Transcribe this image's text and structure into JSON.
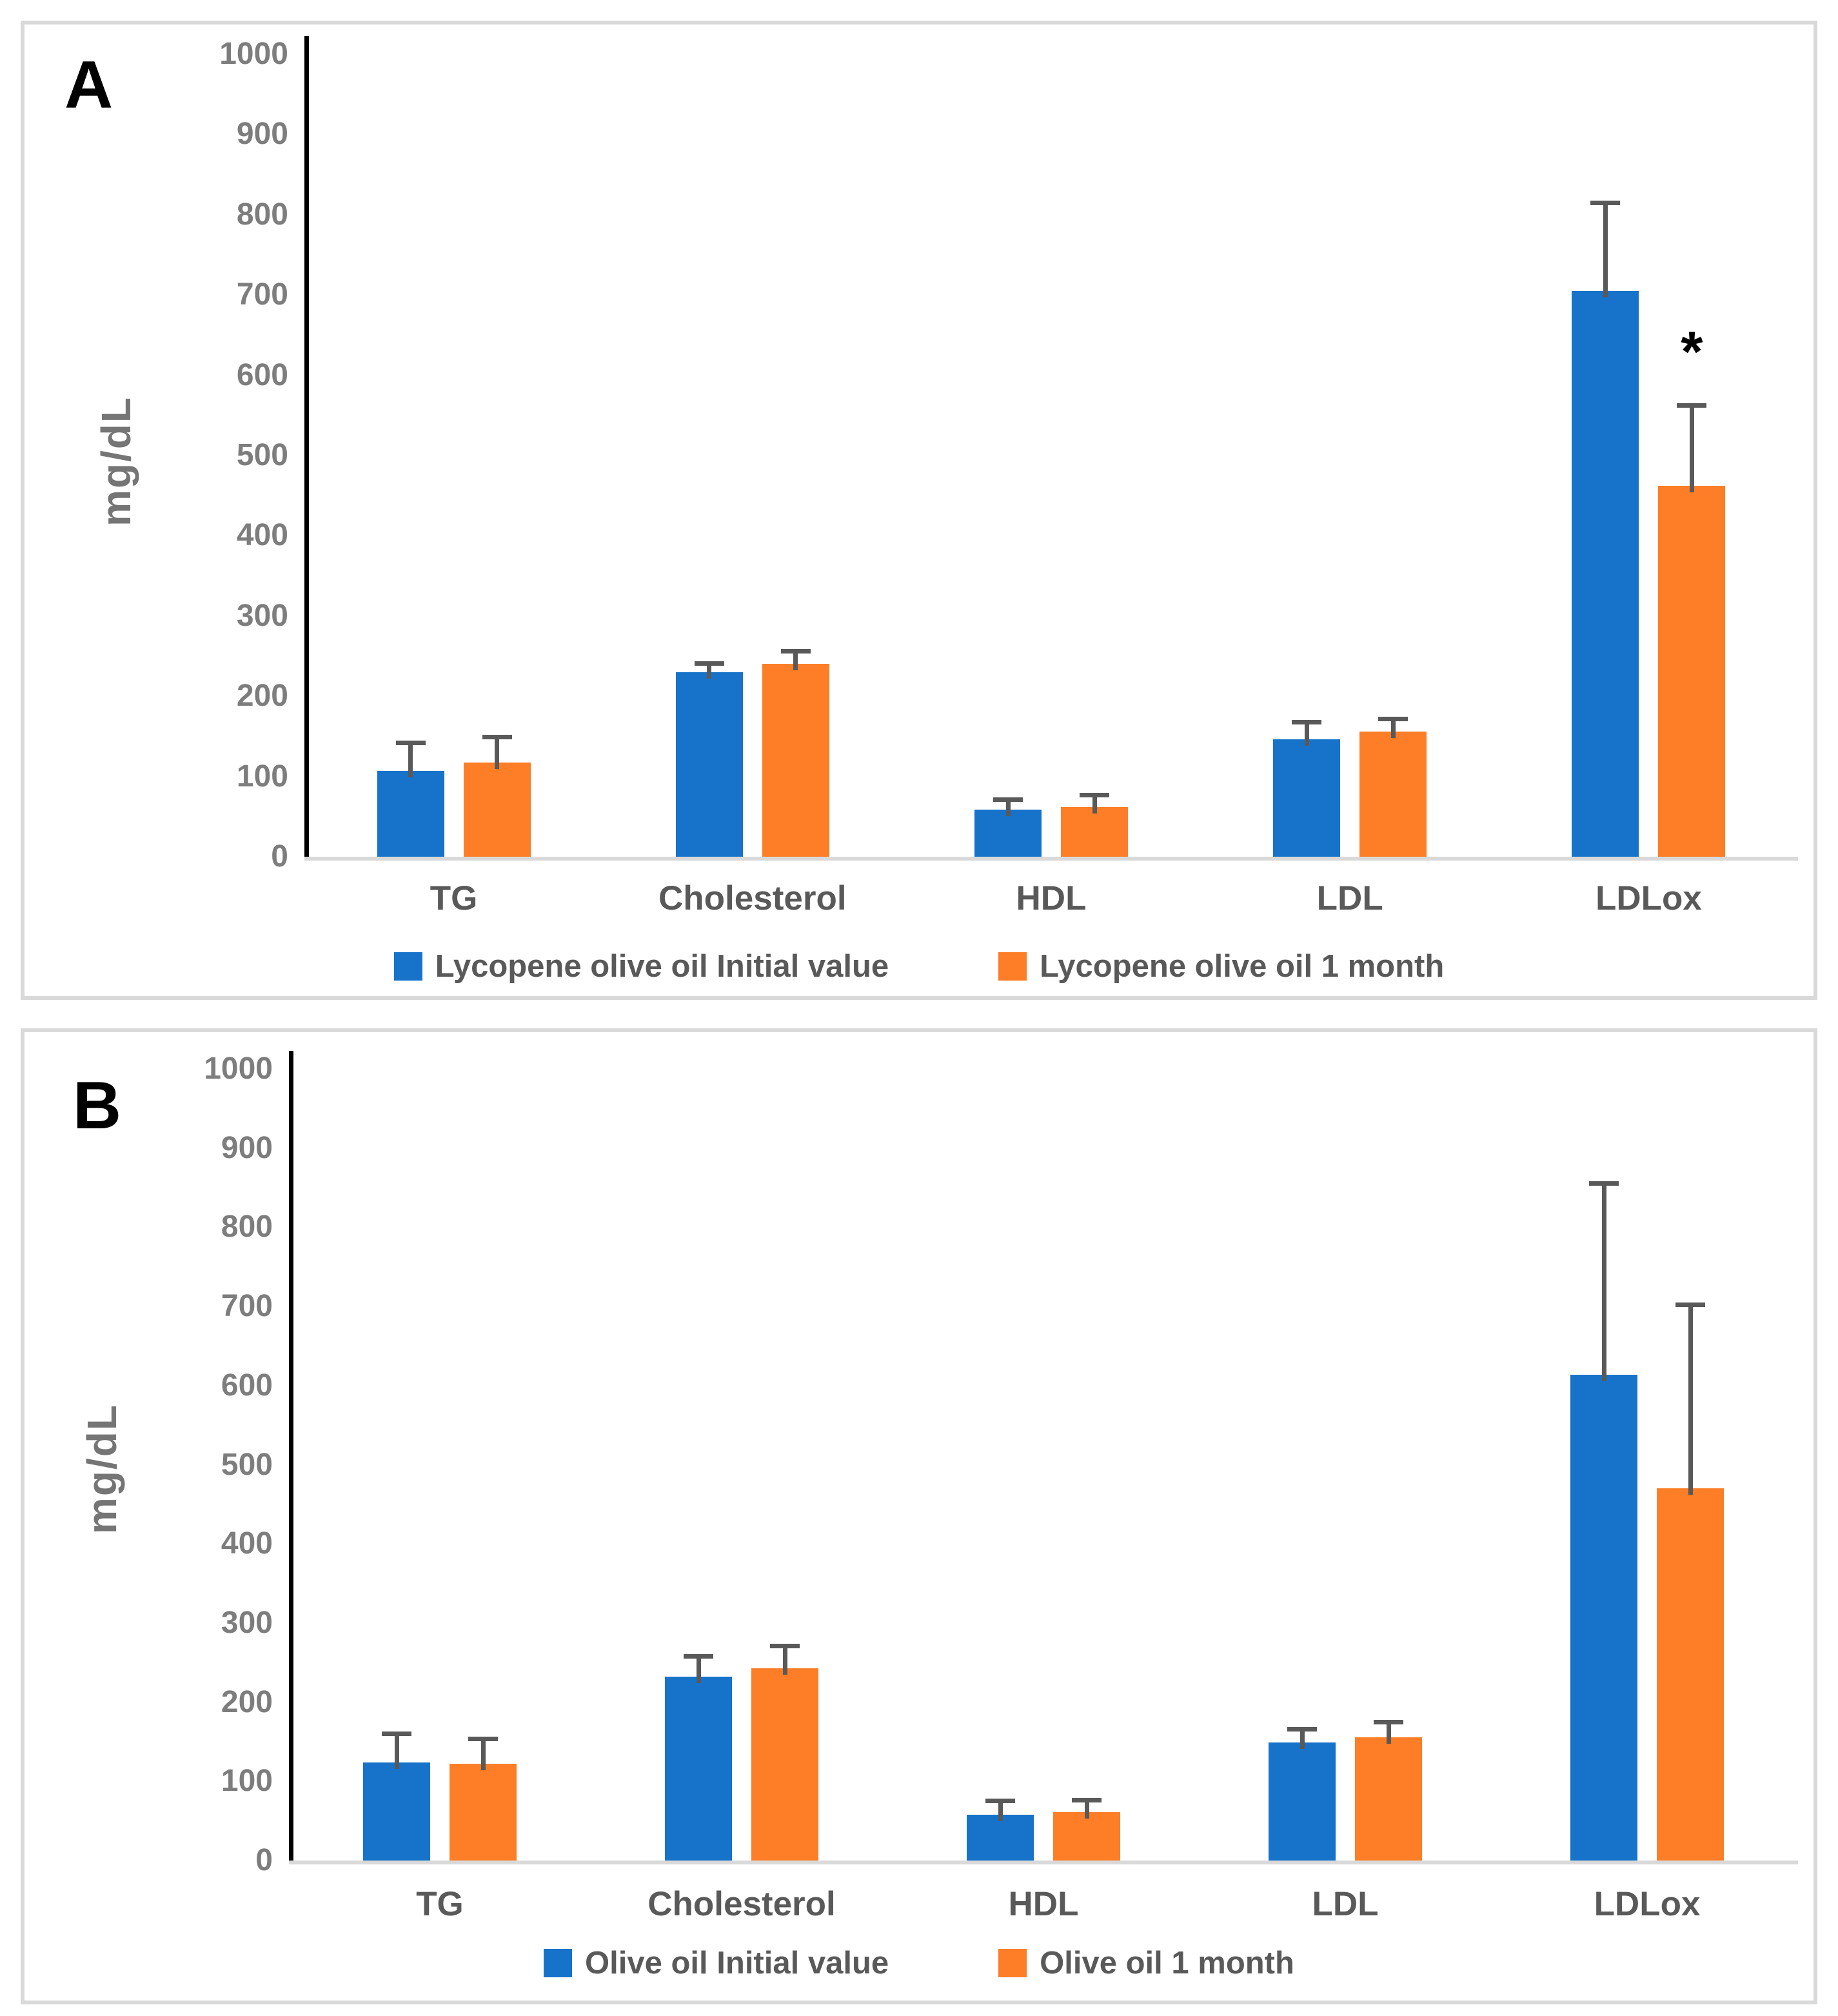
{
  "chart_data": [
    {
      "panel_label": "A",
      "type": "bar",
      "ylabel": "mg/dL",
      "ylim": [
        0,
        1000
      ],
      "ytick_step": 100,
      "ytick_labels": [
        "0",
        "100",
        "200",
        "300",
        "400",
        "500",
        "600",
        "700",
        "800",
        "900",
        "1000"
      ],
      "grid": false,
      "legend_position": "bottom",
      "categories": [
        "TG",
        "Cholesterol",
        "HDL",
        "LDL",
        "LDLox"
      ],
      "series": [
        {
          "name": "Lycopene olive oil Initial value",
          "color": "#1673c9",
          "values": [
            107,
            230,
            59,
            146,
            705
          ],
          "errors": [
            35,
            11,
            12,
            22,
            110
          ]
        },
        {
          "name": "Lycopene olive oil 1 month",
          "color": "#fd7e27",
          "values": [
            117,
            240,
            62,
            156,
            462
          ],
          "errors": [
            32,
            16,
            15,
            16,
            100
          ]
        }
      ],
      "annotations": [
        {
          "category_index": 4,
          "series_index": 1,
          "text": "*"
        }
      ]
    },
    {
      "panel_label": "B",
      "type": "bar",
      "ylabel": "mg/dL",
      "ylim": [
        0,
        1000
      ],
      "ytick_step": 100,
      "ytick_labels": [
        "0",
        "100",
        "200",
        "300",
        "400",
        "500",
        "600",
        "700",
        "800",
        "900",
        "1000"
      ],
      "grid": false,
      "legend_position": "bottom",
      "categories": [
        "TG",
        "Cholesterol",
        "HDL",
        "LDL",
        "LDLox"
      ],
      "series": [
        {
          "name": "Olive oil Initial value",
          "color": "#1673c9",
          "values": [
            124,
            232,
            58,
            149,
            614
          ],
          "errors": [
            36,
            26,
            17,
            17,
            241
          ]
        },
        {
          "name": "Olive oil 1 month",
          "color": "#fd7e27",
          "values": [
            122,
            243,
            61,
            156,
            470
          ],
          "errors": [
            32,
            28,
            15,
            19,
            232
          ]
        }
      ],
      "annotations": []
    }
  ],
  "styles": {
    "background": "#ffffff",
    "panel_border_color": "#d9d9d9",
    "axis_line_color": "#000000",
    "baseline_color": "#d9d9d9",
    "error_bar_color": "#595959",
    "tick_label_color": "#7d7d7d",
    "category_label_color": "#595959",
    "legend_text_color": "#595959",
    "y_axis_title_color": "#757575",
    "panel_label_color": "#000000",
    "series_blue": "#1673c9",
    "series_orange": "#fd7e27"
  }
}
